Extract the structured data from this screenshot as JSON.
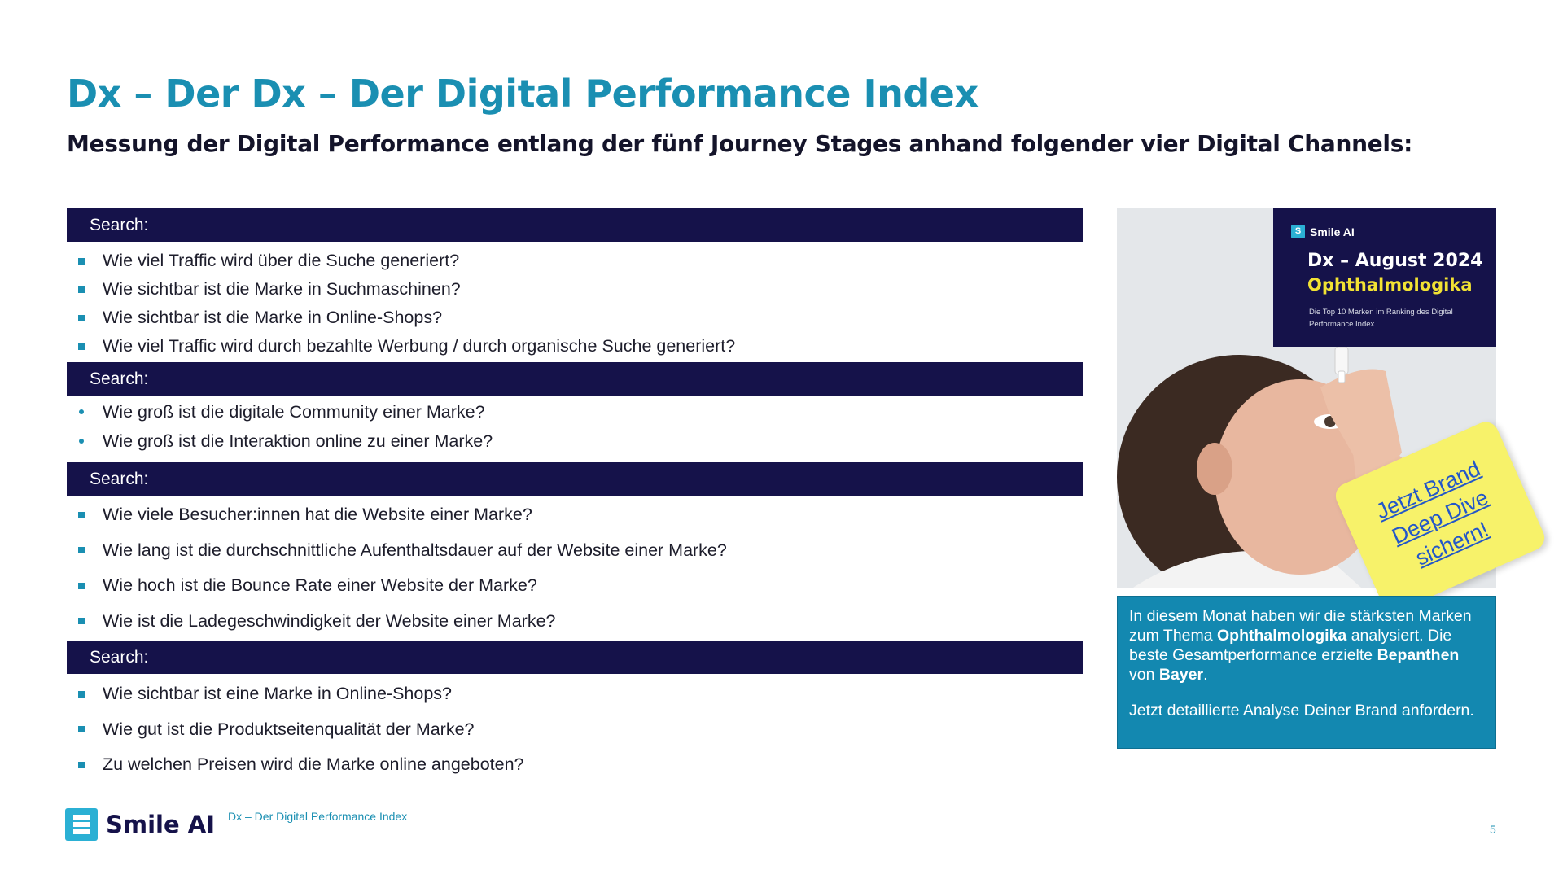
{
  "title": "Dx – Der Dx – Der Digital Performance Index",
  "subtitle": "Messung der Digital  Performance  entlang der fünf Journey Stages  anhand folgender vier Digital  Channels:",
  "sections": [
    {
      "header": "Search:",
      "bullet": "square",
      "questions": [
        "Wie viel Traffic wird über die Suche generiert?",
        "Wie sichtbar ist die Marke in Suchmaschinen?",
        "Wie sichtbar ist die Marke in Online-Shops?",
        "Wie viel Traffic wird durch bezahlte Werbung / durch organische Suche generiert?"
      ]
    },
    {
      "header": "Search:",
      "bullet": "dot",
      "questions": [
        "Wie groß ist die digitale Community einer Marke?",
        "Wie groß ist die Interaktion online zu einer Marke?"
      ]
    },
    {
      "header": "Search:",
      "bullet": "square",
      "questions": [
        "Wie viele Besucher:innen hat die Website einer Marke?",
        "Wie lang ist die durchschnittliche Aufenthaltsdauer auf der Website einer Marke?",
        "Wie hoch ist die Bounce Rate einer Website der Marke?",
        "Wie ist die Ladegeschwindigkeit der Website einer Marke?"
      ]
    },
    {
      "header": "Search:",
      "bullet": "square",
      "questions": [
        "Wie sichtbar ist eine Marke in Online-Shops?",
        "Wie gut ist die Produktseitenqualität der Marke?",
        "Zu welchen Preisen wird die Marke online angeboten?"
      ]
    }
  ],
  "promo": {
    "cover_logo": "Smile AI",
    "cover_title": "Dx – August 2024",
    "cover_topic": "Ophthalmologika",
    "cover_note": "Die Top 10 Marken im Ranking des Digital Performance Index",
    "sticky_text": "Jetzt Brand Deep Dive sichern!",
    "text_1": "In diesem Monat haben wir die stärksten Marken zum Thema ",
    "text_topic": "Ophthalmologika",
    "text_2": " analysiert. Die beste Gesamtperformance erzielte ",
    "text_brand": "Bepanthen",
    "text_3": " von ",
    "text_company": "Bayer",
    "text_4": ".",
    "cta": "Jetzt detaillierte Analyse Deiner Brand anfordern."
  },
  "footer": {
    "logo_text": "Smile AI",
    "label": "Dx – Der Digital Performance Index",
    "page_number": "5"
  },
  "colors": {
    "accent": "#1a8fb2",
    "navy": "#15124a",
    "sticky": "#f7f26a",
    "promo_box": "#1388b0"
  }
}
